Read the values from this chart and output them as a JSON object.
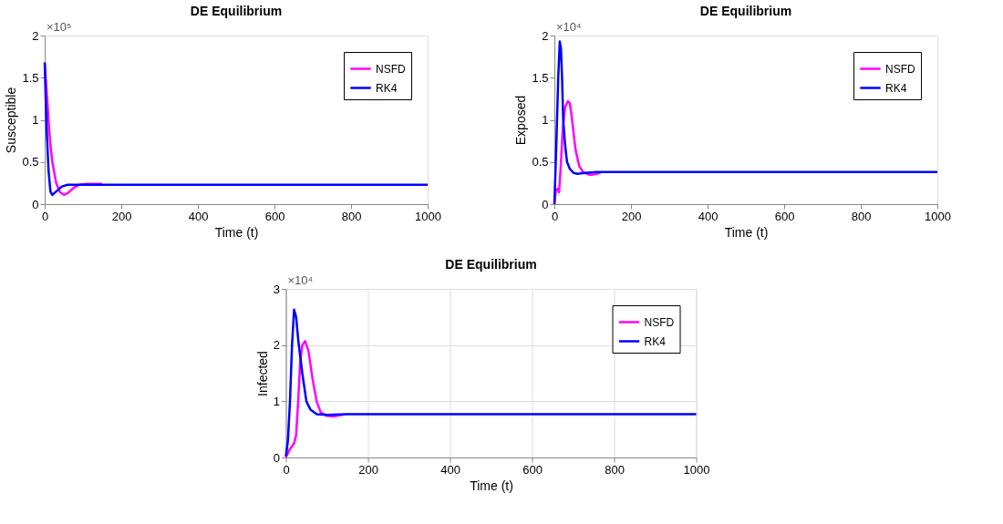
{
  "chart_data": [
    {
      "type": "line",
      "title": "DE Equilibrium",
      "xlabel": "Time (t)",
      "ylabel": "Susceptible",
      "annotations": [
        "×10⁵"
      ],
      "xlim": [
        0,
        1000
      ],
      "xticks": [
        0,
        200,
        400,
        600,
        800,
        1000
      ],
      "ylim": [
        0,
        2
      ],
      "yticks": [
        0,
        0.5,
        1,
        1.5,
        2
      ],
      "grid": false,
      "legend": "top right",
      "line_style": "solid",
      "series": [
        {
          "name": "NSFD",
          "color": "#ff00ff",
          "x": [
            0,
            5,
            10,
            15,
            20,
            30,
            40,
            50,
            60,
            75,
            90,
            110,
            150
          ],
          "values": [
            1.68,
            1.35,
            1.0,
            0.7,
            0.5,
            0.25,
            0.14,
            0.11,
            0.13,
            0.19,
            0.23,
            0.24,
            0.24
          ]
        },
        {
          "name": "RK4",
          "color": "#0000ff",
          "x": [
            0,
            3,
            6,
            10,
            15,
            20,
            30,
            45,
            60,
            80,
            1000
          ],
          "values": [
            1.68,
            1.2,
            0.8,
            0.4,
            0.15,
            0.11,
            0.15,
            0.21,
            0.23,
            0.23,
            0.23
          ]
        }
      ]
    },
    {
      "type": "line",
      "title": "DE Equilibrium",
      "xlabel": "Time (t)",
      "ylabel": "Exposed",
      "annotations": [
        "×10⁴"
      ],
      "xlim": [
        0,
        1000
      ],
      "xticks": [
        0,
        200,
        400,
        600,
        800,
        1000
      ],
      "ylim": [
        0,
        2
      ],
      "yticks": [
        0,
        0.5,
        1,
        1.5,
        2
      ],
      "grid": false,
      "legend": "top right",
      "line_style": "solid",
      "series": [
        {
          "name": "NSFD",
          "color": "#ff00ff",
          "x": [
            0,
            4,
            8,
            12,
            16,
            22,
            28,
            35,
            40,
            45,
            50,
            55,
            65,
            75,
            90,
            100,
            120
          ],
          "values": [
            0,
            0.17,
            0.18,
            0.14,
            0.4,
            0.9,
            1.15,
            1.22,
            1.2,
            1.05,
            0.85,
            0.65,
            0.45,
            0.38,
            0.35,
            0.35,
            0.37
          ]
        },
        {
          "name": "RK4",
          "color": "#0000ff",
          "x": [
            0,
            5,
            10,
            14,
            17,
            20,
            23,
            28,
            33,
            40,
            50,
            60,
            80,
            110,
            1000
          ],
          "values": [
            0,
            0.7,
            1.5,
            1.93,
            1.85,
            1.5,
            1.0,
            0.7,
            0.5,
            0.42,
            0.37,
            0.36,
            0.37,
            0.38,
            0.38
          ]
        }
      ]
    },
    {
      "type": "line",
      "title": "DE Equilibrium",
      "xlabel": "Time (t)",
      "ylabel": "Infected",
      "annotations": [
        "×10⁴"
      ],
      "xlim": [
        0,
        1000
      ],
      "xticks": [
        0,
        200,
        400,
        600,
        800,
        1000
      ],
      "ylim": [
        0,
        3
      ],
      "yticks": [
        0,
        1,
        2,
        3
      ],
      "grid": true,
      "legend": "top right",
      "line_style": "solid",
      "series": [
        {
          "name": "NSFD",
          "color": "#ff00ff",
          "x": [
            0,
            10,
            20,
            25,
            30,
            35,
            40,
            47,
            55,
            65,
            75,
            85,
            100,
            115,
            140
          ],
          "values": [
            0,
            0.15,
            0.25,
            0.4,
            1.0,
            1.7,
            2.0,
            2.07,
            1.9,
            1.4,
            1.0,
            0.8,
            0.74,
            0.73,
            0.76
          ]
        },
        {
          "name": "RK4",
          "color": "#0000ff",
          "x": [
            0,
            5,
            10,
            15,
            20,
            25,
            30,
            40,
            50,
            60,
            75,
            100,
            150,
            1000
          ],
          "values": [
            0.02,
            0.3,
            1.0,
            2.0,
            2.63,
            2.5,
            2.1,
            1.5,
            1.0,
            0.85,
            0.77,
            0.76,
            0.77,
            0.77
          ]
        }
      ]
    }
  ]
}
